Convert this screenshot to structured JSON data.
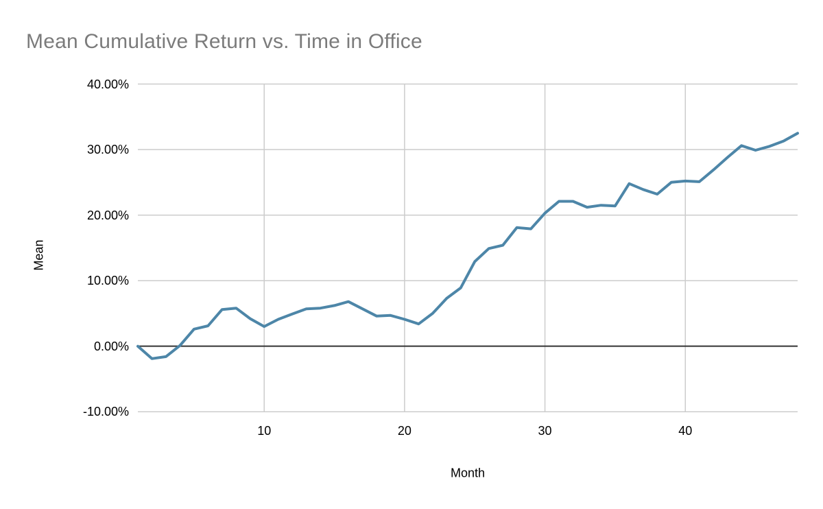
{
  "chart": {
    "title_color": "#7b7b7b",
    "axis_text_color": "#000000"
  },
  "chart_data": {
    "type": "line",
    "title": "Mean Cumulative Return vs. Time in Office",
    "xlabel": "Month",
    "ylabel": "Mean",
    "unit": "%",
    "x": [
      1,
      2,
      3,
      4,
      5,
      6,
      7,
      8,
      9,
      10,
      11,
      12,
      13,
      14,
      15,
      16,
      17,
      18,
      19,
      20,
      21,
      22,
      23,
      24,
      25,
      26,
      27,
      28,
      29,
      30,
      31,
      32,
      33,
      34,
      35,
      36,
      37,
      38,
      39,
      40,
      41,
      42,
      43,
      44,
      45,
      46,
      47,
      48
    ],
    "series": [
      {
        "name": "Mean",
        "values": [
          0.0,
          -1.9,
          -1.6,
          0.1,
          2.6,
          3.1,
          5.6,
          5.8,
          4.2,
          3.0,
          4.1,
          4.9,
          5.7,
          5.8,
          6.2,
          6.8,
          5.7,
          4.6,
          4.7,
          4.1,
          3.4,
          5.0,
          7.3,
          8.9,
          12.9,
          14.9,
          15.4,
          18.1,
          17.9,
          20.3,
          22.1,
          22.1,
          21.2,
          21.5,
          21.4,
          24.8,
          23.9,
          23.2,
          25.0,
          25.2,
          25.1,
          26.9,
          28.8,
          30.6,
          29.9,
          30.5,
          31.3,
          32.5
        ]
      }
    ],
    "xlim": [
      1,
      48
    ],
    "ylim": [
      -10,
      40
    ],
    "x_ticks": [
      10,
      20,
      30,
      40
    ],
    "x_tick_labels": [
      "10",
      "20",
      "30",
      "40"
    ],
    "y_ticks": {
      "values": [
        40,
        30,
        20,
        10,
        0,
        -10
      ],
      "labels": [
        "40.00%",
        "30.00%",
        "20.00%",
        "10.00%",
        "0.00%",
        "-10.00%"
      ]
    },
    "grid": true,
    "legend": false,
    "colors": {
      "series": "#4d86a8",
      "grid": "#cccccc",
      "zero_axis": "#333333"
    }
  }
}
